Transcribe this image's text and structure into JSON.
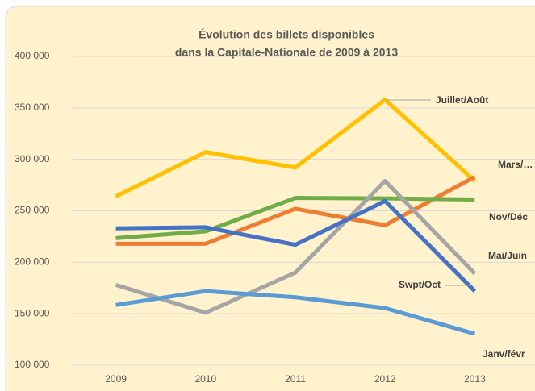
{
  "chart_data": {
    "type": "line",
    "title": "Évolution des billets disponibles",
    "subtitle": "dans la Capitale-Nationale de 2009 à 2013",
    "categories": [
      "2009",
      "2010",
      "2011",
      "2012",
      "2013"
    ],
    "series": [
      {
        "name": "Juillet/Août",
        "color": "#ffc000",
        "values": [
          264000,
          307000,
          292000,
          358000,
          279000
        ]
      },
      {
        "name": "Mars/…",
        "color": "#ed7d31",
        "values": [
          218000,
          218000,
          252000,
          236000,
          283000
        ]
      },
      {
        "name": "Nov/Déc",
        "color": "#70ad47",
        "values": [
          223500,
          230000,
          262500,
          262000,
          261000
        ]
      },
      {
        "name": "Mai/Juin",
        "color": "#a5a5a5",
        "values": [
          178000,
          151000,
          190000,
          279000,
          189000
        ]
      },
      {
        "name": "Swpt/Oct",
        "color": "#4472c4",
        "values": [
          233000,
          234000,
          217000,
          259500,
          172000
        ]
      },
      {
        "name": "Janv/févr",
        "color": "#5b9bd5",
        "values": [
          158500,
          172000,
          166000,
          155500,
          130500
        ]
      }
    ],
    "ylim": [
      100000,
      400000
    ],
    "yticks": [
      {
        "value": 100000,
        "label": "100 000"
      },
      {
        "value": 150000,
        "label": "150 000"
      },
      {
        "value": 200000,
        "label": "200 000"
      },
      {
        "value": 250000,
        "label": "250 000"
      },
      {
        "value": 300000,
        "label": "300 000"
      },
      {
        "value": 350000,
        "label": "350 000"
      },
      {
        "value": 400000,
        "label": "400 000"
      }
    ],
    "grid": true
  }
}
